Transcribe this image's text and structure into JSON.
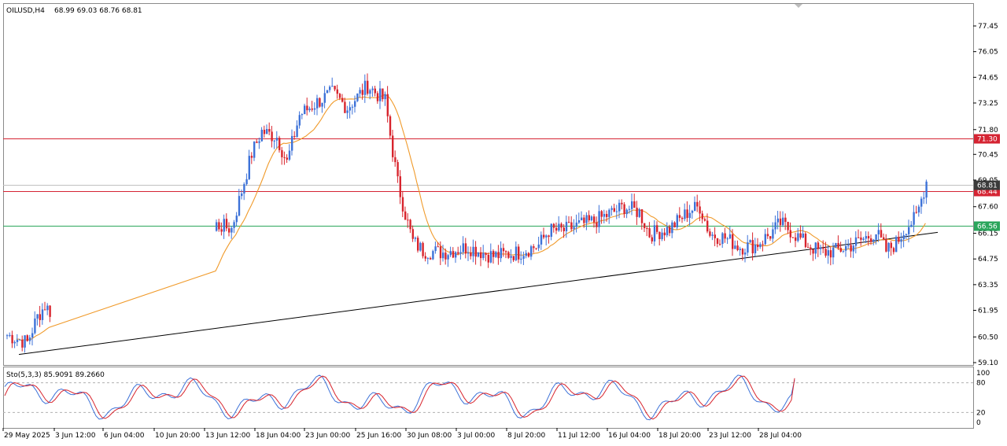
{
  "chart_header": {
    "symbol_tf": "OILUSD,H4",
    "ohlc": "68.99 69.03 68.76 68.81"
  },
  "osc_header": {
    "label": "Sto(5,3,3) 85.9091 89.2660"
  },
  "colors": {
    "bull": "#3d72d8",
    "bear": "#d8242d",
    "ma": "#f09a2a",
    "resist_line": "#d52433",
    "support_line": "#2ba65c",
    "trendline": "#000000",
    "stoch_main": "#3d72d8",
    "stoch_signal": "#d8242d",
    "price_tag_current": "#3a3a3a"
  },
  "chart_data": {
    "type": "candlestick",
    "price_axis": {
      "min": 59.1,
      "max": 78.5,
      "ticks": [
        "77.45",
        "76.05",
        "74.65",
        "73.25",
        "71.80",
        "70.45",
        "69.05",
        "67.60",
        "66.15",
        "64.75",
        "63.35",
        "61.95",
        "60.50",
        "59.10"
      ]
    },
    "time_axis": {
      "labels": [
        "29 May 2025",
        "3 Jun 12:00",
        "6 Jun 04:00",
        "10 Jun 20:00",
        "13 Jun 12:00",
        "18 Jun 04:00",
        "23 Jun 00:00",
        "25 Jun 16:00",
        "30 Jun 08:00",
        "3 Jul 00:00",
        "8 Jul 20:00",
        "11 Jul 12:00",
        "16 Jul 04:00",
        "18 Jul 20:00",
        "23 Jul 12:00",
        "28 Jul 04:00"
      ]
    },
    "levels": [
      {
        "price": 71.3,
        "label": "71.30",
        "kind": "resistance"
      },
      {
        "price": 68.44,
        "label": "68.44",
        "kind": "resistance"
      },
      {
        "price": 66.56,
        "label": "66.56",
        "kind": "support"
      },
      {
        "price": 68.81,
        "label": "68.81",
        "kind": "current"
      }
    ],
    "trendline": {
      "from_price": 59.5,
      "to_price": 66.2
    },
    "stochastic": {
      "main": 85.9091,
      "signal": 89.266,
      "scale_ticks": [
        "100",
        "80",
        "20",
        "0"
      ],
      "levels": [
        80,
        20
      ]
    },
    "anchors": [
      [
        0,
        60.6
      ],
      [
        8,
        60.2
      ],
      [
        12,
        61.6
      ],
      [
        15,
        62.2
      ],
      [
        17,
        61.9
      ],
      [
        30,
        66.6
      ],
      [
        36,
        66.4
      ],
      [
        44,
        70.5
      ],
      [
        48,
        71.7
      ],
      [
        54,
        71.4
      ],
      [
        58,
        70.0
      ],
      [
        63,
        72.6
      ],
      [
        70,
        73.3
      ],
      [
        76,
        73.8
      ],
      [
        82,
        73.0
      ],
      [
        90,
        74.2
      ],
      [
        95,
        73.6
      ],
      [
        97,
        73.4
      ],
      [
        99,
        71.5
      ],
      [
        102,
        68.9
      ],
      [
        105,
        67.2
      ],
      [
        108,
        65.7
      ],
      [
        112,
        65.2
      ],
      [
        120,
        65.1
      ],
      [
        130,
        65.4
      ],
      [
        140,
        64.9
      ],
      [
        150,
        65.1
      ],
      [
        158,
        65.5
      ],
      [
        162,
        66.3
      ],
      [
        168,
        66.3
      ],
      [
        174,
        66.6
      ],
      [
        180,
        66.8
      ],
      [
        186,
        67.2
      ],
      [
        192,
        67.6
      ],
      [
        198,
        67.3
      ],
      [
        202,
        66.1
      ],
      [
        210,
        66.4
      ],
      [
        218,
        67.4
      ],
      [
        222,
        67.6
      ],
      [
        226,
        66.1
      ],
      [
        232,
        65.9
      ],
      [
        238,
        65.4
      ],
      [
        244,
        65.5
      ],
      [
        250,
        66.1
      ],
      [
        254,
        66.7
      ],
      [
        258,
        66.3
      ],
      [
        264,
        65.6
      ],
      [
        270,
        65.1
      ],
      [
        276,
        65.2
      ],
      [
        282,
        65.5
      ],
      [
        288,
        65.9
      ],
      [
        292,
        66.2
      ],
      [
        296,
        65.2
      ],
      [
        300,
        65.6
      ],
      [
        304,
        66.5
      ],
      [
        308,
        67.0
      ],
      [
        312,
        69.0
      ]
    ]
  }
}
